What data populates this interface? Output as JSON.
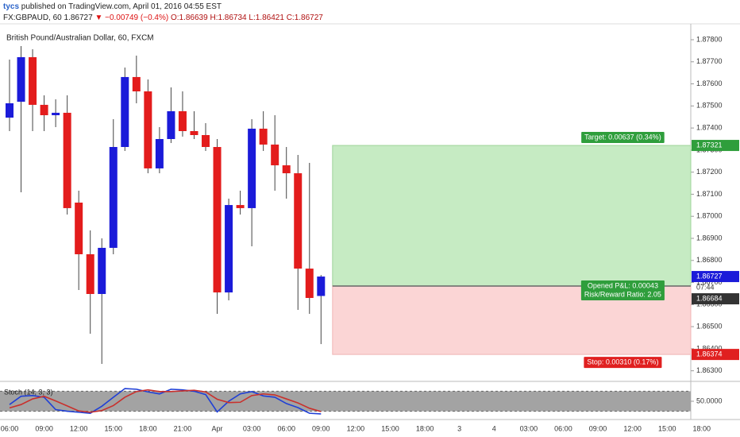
{
  "header": {
    "user": "tycs",
    "published": "published on TradingView.com, April 01, 2016 04:55 EST",
    "symbol": "FX:GBPAUD, 60",
    "last": "1.86727",
    "change": "▼ −0.00749 (−0.4%)",
    "ohlc": [
      "O:1.86639",
      "H:1.86734",
      "L:1.86421",
      "C:1.86727"
    ]
  },
  "chart_data": [
    {
      "type": "candlestick",
      "title": "British Pound/Australian Dollar, 60, FXCM",
      "categories": [
        "06:00",
        null,
        null,
        "09:00",
        null,
        null,
        "12:00",
        null,
        null,
        "15:00",
        null,
        null,
        "18:00",
        null,
        null,
        "21:00",
        null,
        null,
        "Apr",
        null,
        null,
        "03:00",
        null,
        null,
        "06:00",
        null,
        null,
        "09:00",
        null,
        null,
        "12:00",
        null,
        null,
        "15:00",
        null,
        null,
        "18:00",
        null,
        null,
        "3",
        null,
        null,
        "4",
        null,
        null,
        "03:00",
        null,
        null,
        "06:00",
        null,
        null,
        "09:00",
        null,
        null,
        "12:00",
        null,
        null,
        "15:00",
        null,
        null,
        "18:00"
      ],
      "open": [
        1.87447,
        1.87519,
        1.87721,
        1.87505,
        1.87458,
        1.87469,
        1.87062,
        1.86828,
        1.86648,
        1.86857,
        1.87314,
        1.87631,
        1.87566,
        1.87217,
        1.8735,
        1.87476,
        1.87386,
        1.87368,
        1.87314,
        1.86655,
        1.87051,
        1.87037,
        1.87397,
        1.87325,
        1.87231,
        1.87195,
        1.86763,
        1.86639,
        null,
        null,
        null,
        null,
        null,
        null,
        null,
        null,
        null,
        null,
        null,
        null,
        null,
        null,
        null,
        null,
        null,
        null,
        null,
        null,
        null,
        null,
        null,
        null,
        null,
        null,
        null,
        null,
        null,
        null,
        null,
        null,
        null
      ],
      "high": [
        1.8771,
        1.87771,
        1.87757,
        1.87548,
        1.8753,
        1.87548,
        1.87116,
        1.86936,
        1.869,
        1.8744,
        1.87674,
        1.87728,
        1.8762,
        1.87404,
        1.87584,
        1.87566,
        1.87476,
        1.87422,
        1.8735,
        1.8708,
        1.87116,
        1.8744,
        1.87476,
        1.87458,
        1.87314,
        1.87278,
        1.87242,
        1.86734,
        null,
        null,
        null,
        null,
        null,
        null,
        null,
        null,
        null,
        null,
        null,
        null,
        null,
        null,
        null,
        null,
        null,
        null,
        null,
        null,
        null,
        null,
        null,
        null,
        null,
        null,
        null,
        null,
        null,
        null,
        null,
        null,
        null
      ],
      "low": [
        1.87386,
        1.87109,
        1.87386,
        1.87386,
        1.87404,
        1.87008,
        1.86666,
        1.86468,
        1.86331,
        1.86828,
        1.87296,
        1.87512,
        1.87195,
        1.87195,
        1.87332,
        1.87361,
        1.8735,
        1.87296,
        1.86558,
        1.86619,
        1.87008,
        1.86864,
        1.87296,
        1.87116,
        1.8708,
        1.86576,
        1.86558,
        1.86421,
        null,
        null,
        null,
        null,
        null,
        null,
        null,
        null,
        null,
        null,
        null,
        null,
        null,
        null,
        null,
        null,
        null,
        null,
        null,
        null,
        null,
        null,
        null,
        null,
        null,
        null,
        null,
        null,
        null,
        null,
        null,
        null,
        null
      ],
      "close": [
        1.87512,
        1.87721,
        1.87505,
        1.87458,
        1.87469,
        1.87037,
        1.86828,
        1.86648,
        1.86857,
        1.87314,
        1.87631,
        1.87566,
        1.87217,
        1.8735,
        1.87476,
        1.87386,
        1.87368,
        1.87314,
        1.86655,
        1.87051,
        1.87037,
        1.87397,
        1.87325,
        1.87231,
        1.87195,
        1.86763,
        1.8663,
        1.86727,
        null,
        null,
        null,
        null,
        null,
        null,
        null,
        null,
        null,
        null,
        null,
        null,
        null,
        null,
        null,
        null,
        null,
        null,
        null,
        null,
        null,
        null,
        null,
        null,
        null,
        null,
        null,
        null,
        null,
        null,
        null,
        null,
        null
      ],
      "up_color": "#1b1bd9",
      "down_color": "#e31c1c",
      "ylim": [
        1.86288,
        1.87872
      ],
      "yticks": [
        {
          "value": 1.863,
          "label": "1.86300"
        },
        {
          "value": 1.864,
          "label": "1.86400"
        },
        {
          "value": 1.865,
          "label": "1.86500"
        },
        {
          "value": 1.866,
          "label": "1.86600"
        },
        {
          "value": 1.867,
          "label": "1.86700"
        },
        {
          "value": 1.868,
          "label": "1.86800"
        },
        {
          "value": 1.869,
          "label": "1.86900"
        },
        {
          "value": 1.87,
          "label": "1.87000"
        },
        {
          "value": 1.871,
          "label": "1.87100"
        },
        {
          "value": 1.872,
          "label": "1.87200"
        },
        {
          "value": 1.873,
          "label": "1.87300"
        },
        {
          "value": 1.874,
          "label": "1.87400"
        },
        {
          "value": 1.875,
          "label": "1.87500"
        },
        {
          "value": 1.876,
          "label": "1.87600"
        },
        {
          "value": 1.877,
          "label": "1.87700"
        },
        {
          "value": 1.878,
          "label": "1.87800"
        }
      ],
      "grid": false,
      "position": {
        "target": 1.87321,
        "entry": 1.86684,
        "stop": 1.86374,
        "target_label": "Target: 0.00637 (0.34%)",
        "pl_label": "Opened P&L: 0.00043",
        "rr_label": "Risk/Reward Ratio: 2.05",
        "stop_label": "Stop: 0.00310 (0.17%)",
        "countdown": "07:44"
      }
    },
    {
      "type": "line",
      "title": "Stoch (14, 3, 3)",
      "series": [
        {
          "color": "#1f3fd6",
          "values": [
            40,
            65,
            67,
            62,
            25,
            20,
            17,
            14,
            35,
            62,
            88,
            86,
            78,
            72,
            86,
            84,
            80,
            70,
            18,
            50,
            72,
            79,
            66,
            62,
            43,
            31,
            14,
            12,
            null,
            null,
            null,
            null,
            null,
            null,
            null,
            null,
            null,
            null,
            null,
            null,
            null,
            null,
            null,
            null,
            null,
            null,
            null,
            null,
            null,
            null,
            null,
            null,
            null,
            null,
            null,
            null,
            null,
            null,
            null,
            null,
            null
          ]
        },
        {
          "color": "#c9302c",
          "values": [
            30,
            40,
            57,
            65,
            51,
            36,
            21,
            17,
            22,
            37,
            62,
            79,
            84,
            79,
            79,
            81,
            83,
            78,
            56,
            46,
            47,
            67,
            72,
            69,
            57,
            45,
            29,
            19,
            null,
            null,
            null,
            null,
            null,
            null,
            null,
            null,
            null,
            null,
            null,
            null,
            null,
            null,
            null,
            null,
            null,
            null,
            null,
            null,
            null,
            null,
            null,
            null,
            null,
            null,
            null,
            null,
            null,
            null,
            null,
            null,
            null
          ]
        }
      ],
      "ylim": [
        0,
        100
      ],
      "yticks": [
        {
          "value": 50,
          "label": "50.0000"
        }
      ],
      "band": [
        20,
        80
      ]
    }
  ]
}
